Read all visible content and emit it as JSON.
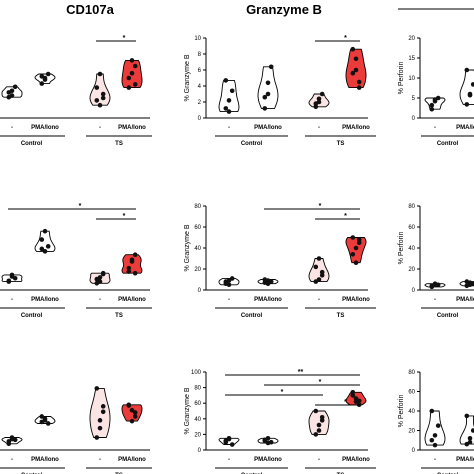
{
  "column_titles": [
    "CD107a",
    "Granzyme B",
    ""
  ],
  "colors": {
    "control_violin": "#ffffff",
    "ts_minus_violin": "#fbe4e4",
    "ts_pma_violin": "#ec3b3b",
    "line": "#000000"
  },
  "chart_data": [
    {
      "type": "violin",
      "panel": "row1-col1",
      "title": "CD107a",
      "ylabel": "",
      "yticks": [],
      "groups": [
        "Control",
        "TS"
      ],
      "categories": [
        "-",
        "PMA/Iono",
        "-",
        "PMA/Iono"
      ],
      "ylim": [
        0,
        10
      ],
      "series": [
        {
          "values": [
            [
              2.6,
              3.4,
              3.9,
              3.2,
              2.8
            ],
            [
              5.2,
              4.8,
              5.5,
              4.3,
              5.0
            ],
            [
              2.2,
              1.6,
              3.0,
              3.8,
              5.5,
              2.5
            ],
            [
              5.0,
              7.2,
              4.2,
              3.8,
              5.6,
              6.5
            ]
          ]
        }
      ],
      "significance": [
        {
          "pair": [
            2,
            3
          ],
          "label": "*"
        }
      ]
    },
    {
      "type": "violin",
      "panel": "row1-col2",
      "title": "Granzyme B",
      "ylabel": "% Granzyme B",
      "yticks": [
        "0",
        "2",
        "4",
        "6",
        "8",
        "10"
      ],
      "groups": [
        "Control",
        "TS"
      ],
      "categories": [
        "-",
        "PMA/Iono",
        "-",
        "PMA/Iono"
      ],
      "ylim": [
        0,
        10
      ],
      "series": [
        {
          "values": [
            [
              1.2,
              2.2,
              3.4,
              4.7,
              0.8
            ],
            [
              2.6,
              4.4,
              6.4,
              1.2,
              3.0
            ],
            [
              1.4,
              2.0,
              3.0,
              1.8,
              2.4
            ],
            [
              8.6,
              6.0,
              4.5,
              5.6,
              7.4,
              3.8
            ]
          ]
        }
      ],
      "significance": [
        {
          "pair": [
            2,
            3
          ],
          "label": "*"
        }
      ]
    },
    {
      "type": "violin",
      "panel": "row1-col3",
      "title": "",
      "ylabel": "% Perforin",
      "yticks": [
        "0",
        "5",
        "10",
        "15",
        "20"
      ],
      "groups": [
        "Control"
      ],
      "categories": [
        "-",
        "PMA/Iono"
      ],
      "ylim": [
        0,
        20
      ],
      "series": [
        {
          "values": [
            [
              3.2,
              4.6,
              5.0,
              2.2,
              4.2
            ],
            [
              3.4,
              5.7,
              8.4,
              12.0,
              6.0
            ]
          ]
        }
      ],
      "significance": []
    },
    {
      "type": "violin",
      "panel": "row2-col1",
      "title": "",
      "ylabel": "",
      "yticks": [],
      "groups": [
        "Control",
        "TS"
      ],
      "categories": [
        "-",
        "PMA/Iono",
        "-",
        "PMA/Iono"
      ],
      "ylim": [
        0,
        10
      ],
      "series": [
        {
          "values": [
            [
              1.1,
              1.8,
              1.4,
              1.0,
              1.6
            ],
            [
              6.0,
              4.6,
              5.2,
              4.9,
              7.0
            ],
            [
              1.3,
              1.0,
              1.9,
              0.8,
              1.5,
              2.0
            ],
            [
              2.6,
              3.4,
              4.2,
              2.2,
              3.6,
              2.0
            ]
          ]
        }
      ],
      "significance": [
        {
          "pair": [
            0,
            3
          ],
          "label": "*"
        },
        {
          "pair": [
            2,
            3
          ],
          "label": "*"
        }
      ]
    },
    {
      "type": "violin",
      "panel": "row2-col2",
      "title": "",
      "ylabel": "% Granzyme B",
      "yticks": [
        "0",
        "20",
        "40",
        "60",
        "80"
      ],
      "groups": [
        "Control",
        "TS"
      ],
      "categories": [
        "-",
        "PMA/Iono",
        "-",
        "PMA/Iono"
      ],
      "ylim": [
        0,
        80
      ],
      "series": [
        {
          "values": [
            [
              6,
              9,
              11,
              8,
              5
            ],
            [
              7,
              9,
              8,
              10,
              6
            ],
            [
              22,
              10,
              17,
              8,
              30,
              14
            ],
            [
              50,
              40,
              48,
              34,
              26,
              45
            ]
          ]
        }
      ],
      "significance": [
        {
          "pair": [
            1,
            3
          ],
          "label": "*"
        },
        {
          "pair": [
            2,
            3
          ],
          "label": "*"
        }
      ]
    },
    {
      "type": "violin",
      "panel": "row2-col3",
      "title": "",
      "ylabel": "% Perforin",
      "yticks": [
        "0",
        "20",
        "40",
        "60",
        "80"
      ],
      "groups": [
        "Control"
      ],
      "categories": [
        "-",
        "PMA/Iono"
      ],
      "ylim": [
        0,
        80
      ],
      "series": [
        {
          "values": [
            [
              4,
              6,
              5,
              3,
              5
            ],
            [
              4,
              7,
              6,
              8,
              5
            ]
          ]
        }
      ],
      "significance": []
    },
    {
      "type": "violin",
      "panel": "row3-col1",
      "title": "",
      "ylabel": "",
      "yticks": [],
      "groups": [
        "Control",
        "TS"
      ],
      "categories": [
        "-",
        "PMA/Iono",
        "-",
        "PMA/Iono"
      ],
      "ylim": [
        0,
        10
      ],
      "series": [
        {
          "values": [
            [
              1.1,
              1.6,
              1.3,
              0.8,
              1.4
            ],
            [
              3.6,
              4.0,
              3.4,
              4.3,
              3.8
            ],
            [
              1.6,
              3.8,
              4.9,
              7.9,
              2.8,
              5.6
            ],
            [
              5.7,
              5.1,
              4.3,
              5.8,
              3.7,
              4.8
            ]
          ]
        }
      ],
      "significance": []
    },
    {
      "type": "violin",
      "panel": "row3-col2",
      "title": "",
      "ylabel": "% Granzyme B",
      "yticks": [
        "0",
        "20",
        "40",
        "60",
        "80",
        "100"
      ],
      "groups": [
        "Control",
        "TS"
      ],
      "categories": [
        "-",
        "PMA/Iono",
        "-",
        "PMA/Iono"
      ],
      "ylim": [
        0,
        100
      ],
      "series": [
        {
          "values": [
            [
              10,
              14,
              7,
              12,
              15
            ],
            [
              12,
              15,
              10,
              13,
              9
            ],
            [
              20,
              32,
              38,
              50,
              25,
              42
            ],
            [
              70,
              62,
              58,
              74,
              66,
              63
            ]
          ]
        }
      ],
      "significance": [
        {
          "pair": [
            0,
            3
          ],
          "label": "**"
        },
        {
          "pair": [
            1,
            3
          ],
          "label": "*"
        },
        {
          "pair": [
            0,
            2
          ],
          "label": "*"
        },
        {
          "pair": [
            2,
            3
          ],
          "label": "*"
        }
      ]
    },
    {
      "type": "violin",
      "panel": "row3-col3",
      "title": "",
      "ylabel": "% Perforin",
      "yticks": [
        "0",
        "20",
        "40",
        "60",
        "80"
      ],
      "groups": [
        "Control"
      ],
      "categories": [
        "-",
        "PMA/Iono"
      ],
      "ylim": [
        0,
        80
      ],
      "series": [
        {
          "values": [
            [
              10,
              15,
              25,
              40,
              5
            ],
            [
              6,
              12,
              20,
              35,
              8
            ]
          ]
        }
      ],
      "significance": []
    }
  ]
}
